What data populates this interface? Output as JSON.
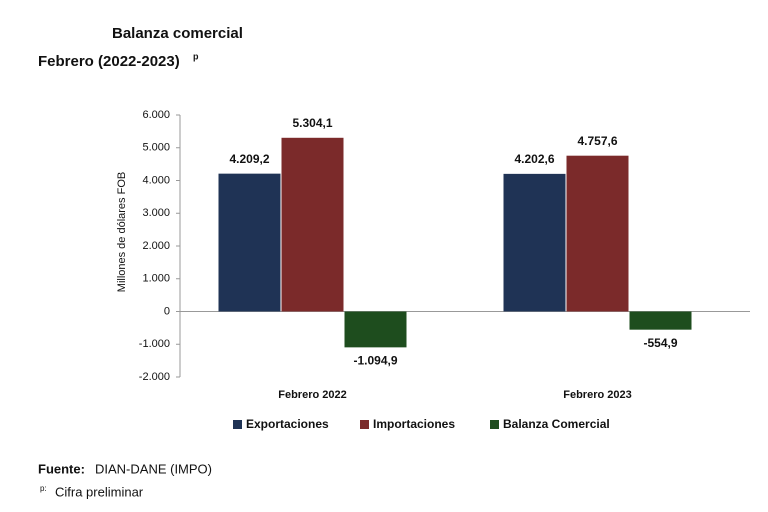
{
  "chart_data": {
    "type": "bar",
    "title": "Balanza comercial",
    "subtitle": "Febrero (2022-2023)",
    "subtitle_note": "p",
    "y_label": "Millones de dólares FOB",
    "categories": [
      "Febrero 2022",
      "Febrero 2023"
    ],
    "series": [
      {
        "name": "Exportaciones",
        "color": "#1f3355",
        "values": [
          4209.2,
          4202.6
        ],
        "value_labels": [
          "4.209,2",
          "4.202,6"
        ]
      },
      {
        "name": "Importaciones",
        "color": "#7b2a2a",
        "values": [
          5304.1,
          4757.6
        ],
        "value_labels": [
          "5.304,1",
          "4.757,6"
        ]
      },
      {
        "name": "Balanza Comercial",
        "color": "#1e4d1e",
        "values": [
          -1094.9,
          -554.9
        ],
        "value_labels": [
          "-1.094,9",
          "-554,9"
        ]
      }
    ],
    "ylim": [
      -2000,
      6000
    ],
    "yticks": [
      {
        "value": -2000,
        "label": "-2.000"
      },
      {
        "value": -1000,
        "label": "-1.000"
      },
      0,
      {
        "value": 1000,
        "label": "1.000"
      },
      {
        "value": 2000,
        "label": "2.000"
      },
      {
        "value": 3000,
        "label": "3.000"
      },
      {
        "value": 4000,
        "label": "4.000"
      },
      {
        "value": 5000,
        "label": "5.000"
      },
      {
        "value": 6000,
        "label": "6.000"
      }
    ],
    "source_label": "Fuente:",
    "source": "DIAN-DANE (IMPO)",
    "note_mark": "p:",
    "note": "Cifra preliminar"
  }
}
